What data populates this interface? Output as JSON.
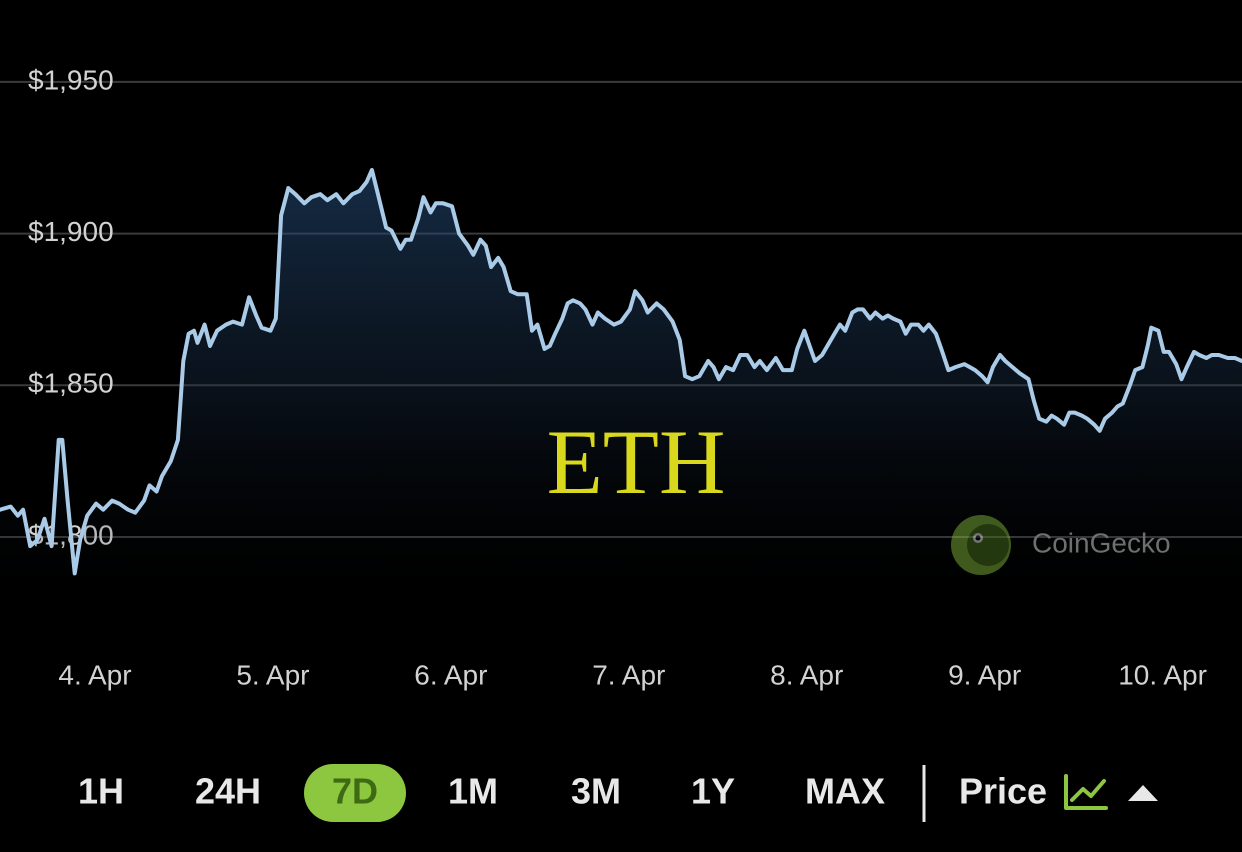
{
  "chart_data": {
    "type": "line",
    "overlay_label": "ETH",
    "watermark": "CoinGecko",
    "color": "#a9cbe8",
    "x": [
      3.5,
      3.56,
      3.6,
      3.63,
      3.67,
      3.71,
      3.75,
      3.79,
      3.83,
      3.85,
      3.88,
      3.92,
      3.95,
      3.99,
      4.04,
      4.08,
      4.13,
      4.17,
      4.22,
      4.26,
      4.31,
      4.34,
      4.38,
      4.41,
      4.46,
      4.5,
      4.53,
      4.56,
      4.59,
      4.61,
      4.65,
      4.68,
      4.72,
      4.77,
      4.81,
      4.86,
      4.9,
      4.94,
      4.97,
      5.02,
      5.05,
      5.08,
      5.12,
      5.16,
      5.21,
      5.25,
      5.3,
      5.34,
      5.39,
      5.43,
      5.48,
      5.52,
      5.56,
      5.59,
      5.62,
      5.67,
      5.7,
      5.75,
      5.78,
      5.81,
      5.85,
      5.88,
      5.92,
      5.95,
      5.99,
      6.04,
      6.08,
      6.13,
      6.16,
      6.2,
      6.23,
      6.26,
      6.3,
      6.33,
      6.37,
      6.41,
      6.46,
      6.49,
      6.52,
      6.56,
      6.59,
      6.62,
      6.66,
      6.69,
      6.72,
      6.76,
      6.79,
      6.83,
      6.86,
      6.9,
      6.95,
      6.99,
      7.04,
      7.07,
      7.11,
      7.14,
      7.19,
      7.23,
      7.28,
      7.32,
      7.35,
      7.39,
      7.43,
      7.48,
      7.51,
      7.54,
      7.58,
      7.62,
      7.66,
      7.7,
      7.74,
      7.77,
      7.81,
      7.86,
      7.9,
      7.95,
      7.98,
      8.02,
      8.05,
      8.08,
      8.12,
      8.15,
      8.19,
      8.22,
      8.25,
      8.29,
      8.32,
      8.35,
      8.39,
      8.42,
      8.46,
      8.49,
      8.52,
      8.56,
      8.59,
      8.62,
      8.66,
      8.69,
      8.72,
      8.76,
      8.79,
      8.83,
      8.87,
      8.92,
      8.95,
      8.98,
      9.02,
      9.05,
      9.08,
      9.12,
      9.15,
      9.19,
      9.23,
      9.28,
      9.31,
      9.34,
      9.38,
      9.41,
      9.44,
      9.48,
      9.51,
      9.54,
      9.58,
      9.61,
      9.65,
      9.68,
      9.71,
      9.75,
      9.78,
      9.81,
      9.85,
      9.88,
      9.92,
      9.95,
      9.97,
      10.01,
      10.04,
      10.07,
      10.11,
      10.14,
      10.17,
      10.21,
      10.24,
      10.28,
      10.31,
      10.35,
      10.4,
      10.44,
      10.48
    ],
    "values": [
      1809,
      1810,
      1807,
      1809,
      1797,
      1799,
      1806,
      1797,
      1832,
      1832,
      1812,
      1788,
      1799,
      1807,
      1811,
      1809,
      1812,
      1811,
      1809,
      1808,
      1812,
      1817,
      1815,
      1820,
      1825,
      1832,
      1858,
      1867,
      1868,
      1864,
      1870,
      1863,
      1868,
      1870,
      1871,
      1870,
      1879,
      1873,
      1869,
      1868,
      1872,
      1906,
      1915,
      1913,
      1910,
      1912,
      1913,
      1911,
      1913,
      1910,
      1913,
      1914,
      1917,
      1921,
      1914,
      1902,
      1901,
      1895,
      1898,
      1898,
      1905,
      1912,
      1907,
      1910,
      1910,
      1909,
      1900,
      1896,
      1893,
      1898,
      1896,
      1889,
      1892,
      1889,
      1881,
      1880,
      1880,
      1868,
      1870,
      1862,
      1863,
      1867,
      1872,
      1877,
      1878,
      1877,
      1875,
      1870,
      1874,
      1872,
      1870,
      1871,
      1875,
      1881,
      1878,
      1874,
      1877,
      1875,
      1871,
      1865,
      1853,
      1852,
      1853,
      1858,
      1856,
      1852,
      1856,
      1855,
      1860,
      1860,
      1856,
      1858,
      1855,
      1859,
      1855,
      1855,
      1862,
      1868,
      1863,
      1858,
      1860,
      1863,
      1867,
      1870,
      1868,
      1874,
      1875,
      1875,
      1872,
      1874,
      1872,
      1873,
      1872,
      1871,
      1867,
      1870,
      1870,
      1868,
      1870,
      1867,
      1862,
      1855,
      1856,
      1857,
      1856,
      1855,
      1853,
      1851,
      1856,
      1860,
      1858,
      1856,
      1854,
      1852,
      1845,
      1839,
      1838,
      1840,
      1839,
      1837,
      1841,
      1841,
      1840,
      1839,
      1837,
      1835,
      1839,
      1841,
      1843,
      1844,
      1850,
      1855,
      1856,
      1863,
      1869,
      1868,
      1861,
      1861,
      1857,
      1852,
      1856,
      1861,
      1860,
      1859,
      1860,
      1860,
      1859,
      1859,
      1858
    ],
    "xlim": [
      3.5,
      10.48
    ],
    "xticks": [
      {
        "value": 4,
        "label": "4. Apr"
      },
      {
        "value": 5,
        "label": "5. Apr"
      },
      {
        "value": 6,
        "label": "6. Apr"
      },
      {
        "value": 7,
        "label": "7. Apr"
      },
      {
        "value": 8,
        "label": "8. Apr"
      },
      {
        "value": 9,
        "label": "9. Apr"
      },
      {
        "value": 10,
        "label": "10. Apr"
      }
    ],
    "ylim": [
      1770,
      1977
    ],
    "yticks": [
      {
        "value": 1800,
        "label": "$1,800"
      },
      {
        "value": 1850,
        "label": "$1,850"
      },
      {
        "value": 1900,
        "label": "$1,900"
      },
      {
        "value": 1950,
        "label": "$1,950"
      }
    ],
    "grid": true
  },
  "controls": {
    "ranges": [
      "1H",
      "24H",
      "7D",
      "1M",
      "3M",
      "1Y",
      "MAX"
    ],
    "selected": 2,
    "metric": "Price"
  }
}
